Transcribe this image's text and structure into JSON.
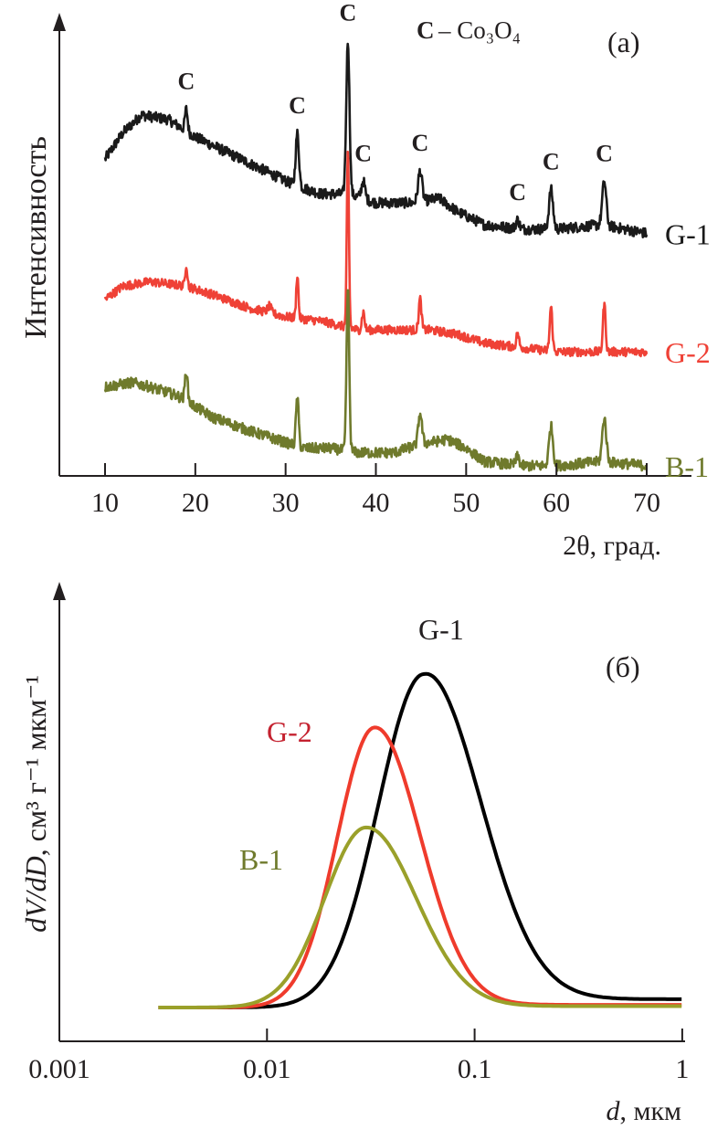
{
  "chart_data": [
    {
      "panel": "a",
      "type": "line",
      "panel_label": "(a)",
      "title": "",
      "xlabel": "2θ, град.",
      "ylabel": "Интенсивность",
      "xlim": [
        5,
        75
      ],
      "x_ticks": [
        10,
        20,
        30,
        40,
        50,
        60,
        70
      ],
      "y_ticks": [],
      "grid": false,
      "legend_note": {
        "marker": "C",
        "text": "– Co₃O₄",
        "position": "top-right"
      },
      "peak_markers": [
        {
          "label": "C",
          "x": 19.0
        },
        {
          "label": "C",
          "x": 31.3
        },
        {
          "label": "C",
          "x": 36.9
        },
        {
          "label": "C",
          "x": 38.6
        },
        {
          "label": "C",
          "x": 44.9
        },
        {
          "label": "C",
          "x": 55.7
        },
        {
          "label": "C",
          "x": 59.4
        },
        {
          "label": "C",
          "x": 65.3
        }
      ],
      "series": [
        {
          "name": "G-1",
          "color": "#1a1a1a",
          "offset": 0.7,
          "noise": 0.012,
          "background": [
            [
              10,
              0.7
            ],
            [
              12,
              0.76
            ],
            [
              14,
              0.8
            ],
            [
              17,
              0.79
            ],
            [
              20,
              0.75
            ],
            [
              24,
              0.71
            ],
            [
              28,
              0.67
            ],
            [
              31,
              0.64
            ],
            [
              34,
              0.62
            ],
            [
              37,
              0.62
            ],
            [
              40,
              0.6
            ],
            [
              44,
              0.6
            ],
            [
              47,
              0.61
            ],
            [
              49,
              0.58
            ],
            [
              52,
              0.55
            ],
            [
              56,
              0.54
            ],
            [
              60,
              0.54
            ],
            [
              65,
              0.55
            ],
            [
              70,
              0.53
            ]
          ],
          "peaks": [
            [
              19.0,
              0.05,
              0.15
            ],
            [
              31.3,
              0.12,
              0.18
            ],
            [
              36.9,
              0.35,
              0.18
            ],
            [
              38.6,
              0.04,
              0.2
            ],
            [
              44.9,
              0.07,
              0.22
            ],
            [
              55.7,
              0.02,
              0.2
            ],
            [
              59.4,
              0.09,
              0.22
            ],
            [
              65.3,
              0.1,
              0.22
            ]
          ]
        },
        {
          "name": "G-2",
          "color": "#ef4136",
          "noise": 0.01,
          "background": [
            [
              10,
              0.38
            ],
            [
              12,
              0.41
            ],
            [
              15,
              0.42
            ],
            [
              19,
              0.41
            ],
            [
              22,
              0.39
            ],
            [
              26,
              0.36
            ],
            [
              30,
              0.34
            ],
            [
              34,
              0.33
            ],
            [
              38,
              0.31
            ],
            [
              42,
              0.31
            ],
            [
              46,
              0.31
            ],
            [
              49,
              0.3
            ],
            [
              52,
              0.28
            ],
            [
              56,
              0.27
            ],
            [
              60,
              0.26
            ],
            [
              65,
              0.26
            ],
            [
              70,
              0.26
            ]
          ],
          "peaks": [
            [
              19.0,
              0.05,
              0.12
            ],
            [
              28.2,
              0.015,
              0.2
            ],
            [
              31.3,
              0.1,
              0.12
            ],
            [
              36.9,
              0.4,
              0.12
            ],
            [
              38.6,
              0.04,
              0.15
            ],
            [
              44.9,
              0.07,
              0.15
            ],
            [
              55.7,
              0.03,
              0.15
            ],
            [
              59.4,
              0.1,
              0.15
            ],
            [
              65.3,
              0.11,
              0.15
            ]
          ]
        },
        {
          "name": "B-1",
          "color": "#6f7a2c",
          "noise": 0.012,
          "background": [
            [
              10,
              0.18
            ],
            [
              13,
              0.19
            ],
            [
              15,
              0.18
            ],
            [
              18,
              0.16
            ],
            [
              22,
              0.11
            ],
            [
              26,
              0.08
            ],
            [
              29,
              0.06
            ],
            [
              32,
              0.04
            ],
            [
              35,
              0.04
            ],
            [
              38,
              0.03
            ],
            [
              42,
              0.03
            ],
            [
              45,
              0.05
            ],
            [
              48,
              0.06
            ],
            [
              50,
              0.04
            ],
            [
              52,
              0.01
            ],
            [
              56,
              0.0
            ],
            [
              60,
              0.0
            ],
            [
              65,
              0.01
            ],
            [
              70,
              0.0
            ]
          ],
          "peaks": [
            [
              19.0,
              0.07,
              0.15
            ],
            [
              31.3,
              0.11,
              0.15
            ],
            [
              36.9,
              0.37,
              0.15
            ],
            [
              44.9,
              0.07,
              0.2
            ],
            [
              55.7,
              0.02,
              0.2
            ],
            [
              59.4,
              0.09,
              0.22
            ],
            [
              65.3,
              0.1,
              0.22
            ]
          ]
        }
      ]
    },
    {
      "panel": "б",
      "type": "line",
      "panel_label": "(б)",
      "title": "",
      "xlabel_italic": "d",
      "xlabel_rest": ", мкм",
      "ylabel_italic": "dV/dD",
      "ylabel_rest": ", см³ г⁻¹ мкм⁻¹",
      "xscale": "log",
      "xlim": [
        0.001,
        1
      ],
      "x_ticks": [
        0.001,
        0.01,
        0.1,
        1
      ],
      "x_tick_labels": [
        "0.001",
        "0.01",
        "0.1",
        "1"
      ],
      "y_ticks": [],
      "grid": false,
      "series": [
        {
          "name": "G-1",
          "color": "#000000",
          "label_color": "#231f20",
          "x_start": 0.003,
          "peak_d": 0.057,
          "peak_height": 1.0,
          "width_left": 0.22,
          "width_right": 0.27,
          "tail": 0.025,
          "baseline": 0.0
        },
        {
          "name": "G-2",
          "color": "#ef3b2c",
          "label_color": "#c4212f",
          "x_start": 0.003,
          "peak_d": 0.033,
          "peak_height": 0.84,
          "width_left": 0.18,
          "width_right": 0.22,
          "tail": 0.008,
          "baseline": 0.0
        },
        {
          "name": "B-1",
          "color": "#9aa02a",
          "label_color": "#6f7a2c",
          "x_start": 0.003,
          "peak_d": 0.03,
          "peak_height": 0.54,
          "width_left": 0.2,
          "width_right": 0.24,
          "tail": 0.004,
          "baseline": 0.0
        }
      ]
    }
  ]
}
